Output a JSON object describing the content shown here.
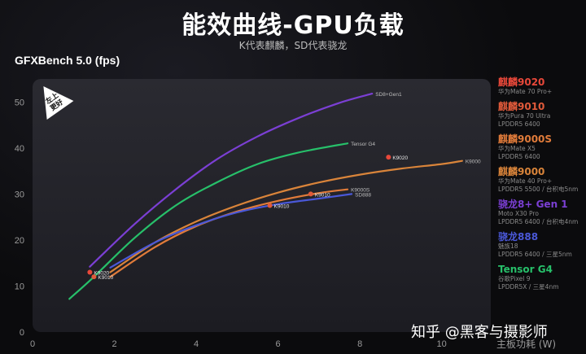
{
  "header": {
    "title": "能效曲线-GPU负载",
    "subtitle": "K代表麒麟，SD代表骁龙"
  },
  "badge": {
    "text": "左上\n更好"
  },
  "watermark": "知乎 @黑客与摄影师",
  "colors": {
    "K9020": "#e8483a",
    "K9010": "#e05a3a",
    "K9000S": "#e07b3a",
    "K9000": "#d9843a",
    "SD8Gen1": "#7b3fd4",
    "SD888": "#4a58d8",
    "TensorG4": "#27c06a",
    "axis": "#8a8a8a"
  },
  "legend": [
    {
      "name": "麒麟9020",
      "sub": [
        "华为Mate 70 Pro+"
      ],
      "color": "#e8483a"
    },
    {
      "name": "麒麟9010",
      "sub": [
        "华为Pura 70 Ultra",
        "LPDDR5 6400"
      ],
      "color": "#e05a3a"
    },
    {
      "name": "麒麟9000S",
      "sub": [
        "华为Mate X5",
        "LPDDR5 6400"
      ],
      "color": "#e07b3a"
    },
    {
      "name": "麒麟9000",
      "sub": [
        "华为Mate 40 Pro+",
        "LPDDR5 5500 / 台积电5nm"
      ],
      "color": "#d9843a"
    },
    {
      "name": "骁龙8+ Gen 1",
      "sub": [
        "Moto X30 Pro",
        "LPDDR5 6400 / 台积电4nm"
      ],
      "color": "#7b3fd4"
    },
    {
      "name": "骁龙888",
      "sub": [
        "魅族18",
        "LPDDR5 6400 / 三星5nm"
      ],
      "color": "#4a58d8"
    },
    {
      "name": "Tensor G4",
      "sub": [
        "谷歌Pixel 9",
        "LPDDR5X / 三星4nm"
      ],
      "color": "#27c06a"
    }
  ],
  "chart_data": {
    "type": "line",
    "title": "GFXBench 5.0 (fps)",
    "xlabel": "主板功耗 (W)",
    "ylabel": "",
    "xlim": [
      0,
      11.2
    ],
    "ylim": [
      0,
      55
    ],
    "xticks": [
      0,
      2,
      4,
      6,
      8,
      10
    ],
    "yticks": [
      0,
      10,
      20,
      30,
      40,
      50
    ],
    "grid": false,
    "legend_position": "right",
    "series": [
      {
        "name": "SD8+Gen1",
        "color": "#7b3fd4",
        "x": [
          1.4,
          2.5,
          3.5,
          4.5,
          5.5,
          6.5,
          7.5,
          8.3
        ],
        "y": [
          14.2,
          23.5,
          31.0,
          37.5,
          42.5,
          46.5,
          49.8,
          51.8
        ]
      },
      {
        "name": "Tensor G4",
        "color": "#27c06a",
        "x": [
          0.9,
          1.5,
          2.5,
          3.5,
          4.5,
          5.5,
          6.5,
          7.7
        ],
        "y": [
          7.2,
          12.0,
          20.5,
          27.5,
          32.5,
          36.5,
          39.0,
          41.0
        ]
      },
      {
        "name": "K9000",
        "color": "#d9843a",
        "x": [
          1.9,
          3.0,
          4.0,
          5.0,
          6.0,
          7.0,
          8.0,
          9.0,
          10.0,
          10.5
        ],
        "y": [
          13.0,
          19.5,
          24.0,
          27.5,
          30.3,
          32.5,
          34.2,
          35.5,
          36.5,
          37.2
        ]
      },
      {
        "name": "K9000S",
        "color": "#e07b3a",
        "x": [
          1.9,
          3.0,
          4.0,
          5.0,
          6.0,
          7.0,
          7.7
        ],
        "y": [
          12.0,
          18.5,
          23.0,
          26.2,
          28.5,
          30.2,
          31.0
        ]
      },
      {
        "name": "SD888",
        "color": "#4a58d8",
        "x": [
          1.9,
          3.0,
          4.0,
          5.0,
          6.0,
          7.0,
          7.8
        ],
        "y": [
          14.0,
          19.5,
          23.2,
          26.0,
          27.8,
          29.0,
          30.0
        ]
      }
    ],
    "points": [
      {
        "label": "K9020",
        "x": 1.4,
        "y": 13.0,
        "color": "#e8483a"
      },
      {
        "label": "K9010",
        "x": 1.5,
        "y": 12.0,
        "color": "#e05a3a"
      },
      {
        "label": "K9010",
        "x": 5.8,
        "y": 27.5,
        "color": "#e05a3a"
      },
      {
        "label": "K9010",
        "x": 6.8,
        "y": 30.0,
        "color": "#e05a3a"
      },
      {
        "label": "K9020",
        "x": 8.7,
        "y": 38.0,
        "color": "#e8483a"
      }
    ],
    "series_end_labels": [
      {
        "text": "SD8+Gen1",
        "x": 8.3,
        "y": 51.8
      },
      {
        "text": "Tensor G4",
        "x": 7.7,
        "y": 41.0
      },
      {
        "text": "K9000",
        "x": 10.5,
        "y": 37.2
      },
      {
        "text": "K9000S",
        "x": 7.7,
        "y": 31.0
      },
      {
        "text": "SD888",
        "x": 7.8,
        "y": 30.0
      }
    ]
  }
}
